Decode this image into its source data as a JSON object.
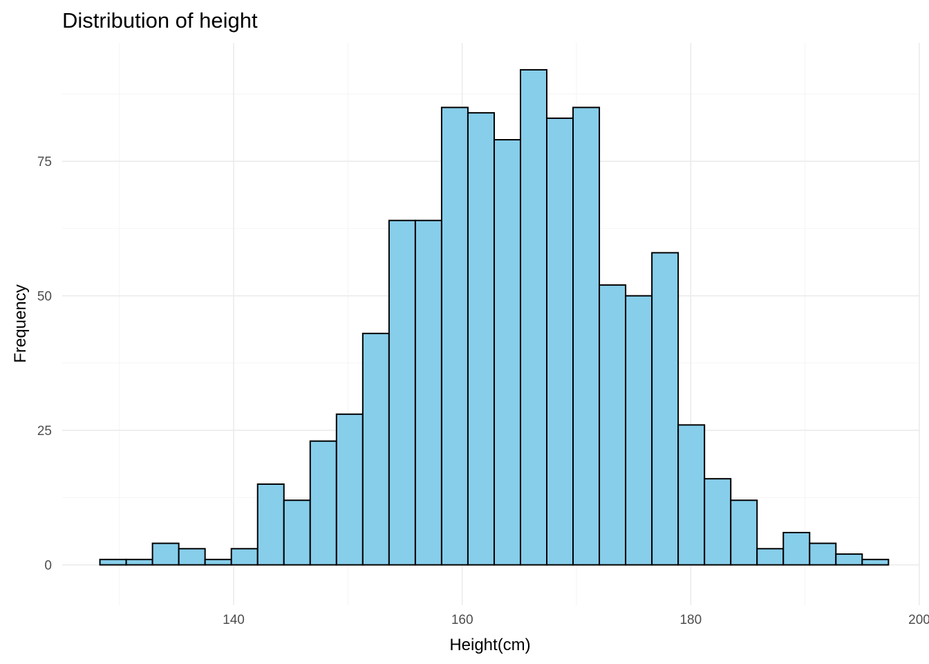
{
  "chart_data": {
    "type": "bar",
    "title": "Distribution of height",
    "xlabel": "Height(cm)",
    "ylabel": "Frequency",
    "xlim": [
      125,
      200
    ],
    "ylim": [
      -7.5,
      97
    ],
    "x_ticks": [
      140,
      160,
      180,
      200
    ],
    "y_ticks": [
      0,
      25,
      50,
      75
    ],
    "bin_width": 2.3,
    "bins": [
      {
        "start": 128.3,
        "count": 1
      },
      {
        "start": 130.6,
        "count": 1
      },
      {
        "start": 132.9,
        "count": 4
      },
      {
        "start": 135.2,
        "count": 3
      },
      {
        "start": 137.5,
        "count": 1
      },
      {
        "start": 139.8,
        "count": 3
      },
      {
        "start": 142.1,
        "count": 15
      },
      {
        "start": 144.4,
        "count": 12
      },
      {
        "start": 146.7,
        "count": 23
      },
      {
        "start": 149.0,
        "count": 28
      },
      {
        "start": 151.3,
        "count": 43
      },
      {
        "start": 153.6,
        "count": 64
      },
      {
        "start": 155.9,
        "count": 64
      },
      {
        "start": 158.2,
        "count": 85
      },
      {
        "start": 160.5,
        "count": 84
      },
      {
        "start": 162.8,
        "count": 79
      },
      {
        "start": 165.1,
        "count": 92
      },
      {
        "start": 167.4,
        "count": 83
      },
      {
        "start": 169.7,
        "count": 85
      },
      {
        "start": 172.0,
        "count": 52
      },
      {
        "start": 174.3,
        "count": 50
      },
      {
        "start": 176.6,
        "count": 58
      },
      {
        "start": 178.9,
        "count": 26
      },
      {
        "start": 181.2,
        "count": 16
      },
      {
        "start": 183.5,
        "count": 12
      },
      {
        "start": 185.8,
        "count": 3
      },
      {
        "start": 188.1,
        "count": 6
      },
      {
        "start": 190.4,
        "count": 4
      },
      {
        "start": 192.7,
        "count": 2
      },
      {
        "start": 195.0,
        "count": 1
      }
    ],
    "grid": true,
    "legend": "none",
    "colors": {
      "bar_fill": "#87ceeb",
      "bar_border": "#000000",
      "grid": "#ebebeb"
    }
  }
}
